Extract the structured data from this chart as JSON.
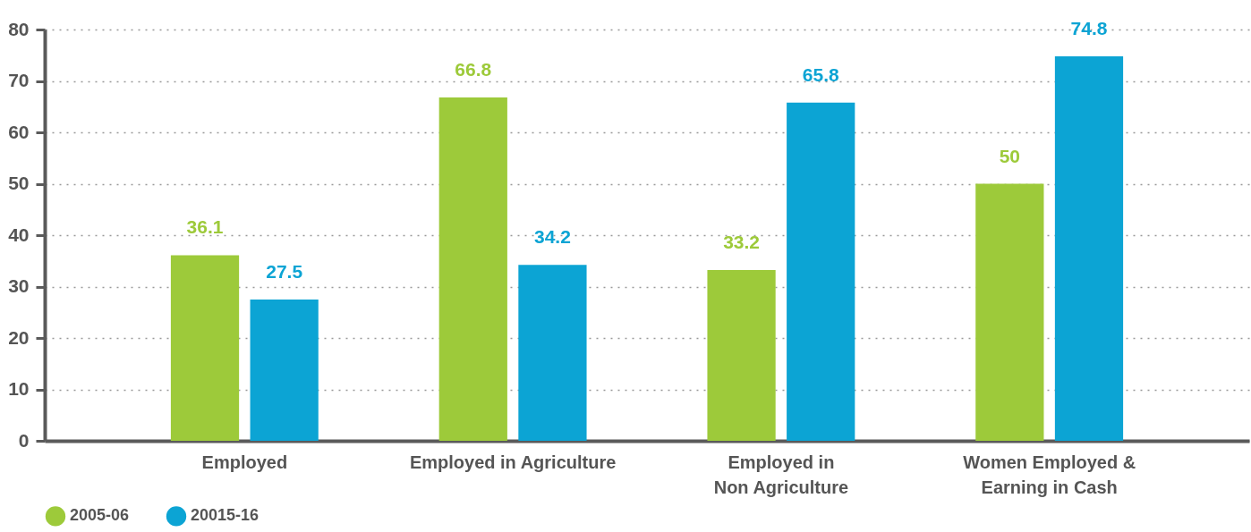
{
  "chart_data": {
    "type": "bar",
    "categories": [
      "Employed",
      "Employed in Agriculture",
      "Employed in\nNon Agriculture",
      "Women Employed &\nEarning in Cash"
    ],
    "series": [
      {
        "name": "2005-06",
        "color": "#9dca3a",
        "values": [
          36.1,
          66.8,
          33.2,
          50
        ]
      },
      {
        "name": "20015-16",
        "color": "#0ca4d4",
        "values": [
          27.5,
          34.2,
          65.8,
          74.8
        ]
      }
    ],
    "ylim": [
      0,
      80
    ],
    "yticks": [
      0,
      10,
      20,
      30,
      40,
      50,
      60,
      70,
      80
    ],
    "grid": "y",
    "legend": "bottom",
    "data_labels": true
  }
}
